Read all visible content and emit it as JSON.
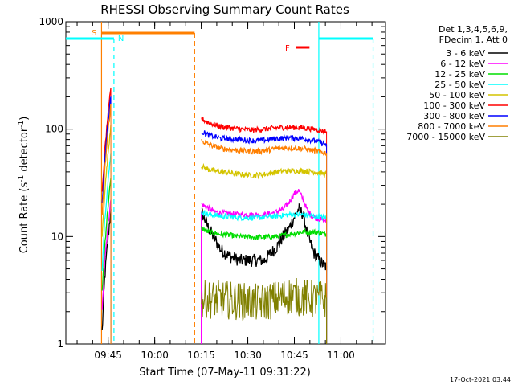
{
  "chart_data": {
    "type": "line",
    "title": "RHESSI Observing Summary Count Rates",
    "xlabel": "Start Time (07-May-11 09:31:22)",
    "ylabel": "Count Rate (s",
    "ylabel_sup1": "-1",
    "ylabel_mid": " detector",
    "ylabel_sup2": "-1",
    "ylabel_end": ")",
    "yscale": "log",
    "ylim": [
      1,
      1000
    ],
    "y_ticks": [
      {
        "value": 1,
        "label": "1"
      },
      {
        "value": 10,
        "label": "10"
      },
      {
        "value": 100,
        "label": "100"
      },
      {
        "value": 1000,
        "label": "1000"
      }
    ],
    "xlim_minutes": [
      0,
      103
    ],
    "x_ticks": [
      {
        "minutes": 13.63,
        "label": "09:45"
      },
      {
        "minutes": 28.63,
        "label": "10:00"
      },
      {
        "minutes": 43.63,
        "label": "10:15"
      },
      {
        "minutes": 58.63,
        "label": "10:30"
      },
      {
        "minutes": 73.63,
        "label": "10:45"
      },
      {
        "minutes": 88.63,
        "label": "11:00"
      }
    ],
    "legend": {
      "placement": "top-right outside",
      "header1": "Det 1,3,4,5,6,9,",
      "header2": "FDecim 1, Att 0",
      "entries": [
        {
          "label": "3 - 6 keV",
          "color": "#000000"
        },
        {
          "label": "6 - 12 keV",
          "color": "#ff00ff"
        },
        {
          "label": "12 - 25 keV",
          "color": "#00dd00"
        },
        {
          "label": "25 - 50 keV",
          "color": "#00ffff"
        },
        {
          "label": "50 - 100 keV",
          "color": "#d4c400"
        },
        {
          "label": "100 - 300 keV",
          "color": "#ff0000"
        },
        {
          "label": "300 - 800 keV",
          "color": "#0000ff"
        },
        {
          "label": "800 - 7000 keV",
          "color": "#ff7f00"
        },
        {
          "label": "7000 - 15000 keV",
          "color": "#808000"
        }
      ]
    },
    "annotations": {
      "saa_label": "S",
      "night_label": "N",
      "flare_label": "F",
      "saa_color": "#ff7f00",
      "night_color": "#00ffff",
      "flare_color": "#ff0000",
      "saa_interval_minutes": [
        11.5,
        41.5
      ],
      "night_intervals_minutes": [
        [
          0,
          15.5
        ],
        [
          81.5,
          99
        ]
      ],
      "flare_interval_minutes": [
        74.2,
        78.5
      ],
      "attenuator_line_minutes": 43.63
    },
    "series": [
      {
        "name": "3 - 6 keV",
        "color": "#000000",
        "segments": [
          {
            "x": [
              11.7,
              12.5,
              13.5,
              14.5
            ],
            "y": [
              1.3,
              4,
              9,
              18
            ]
          },
          {
            "x": [
              43.7,
              46,
              48,
              50,
              53,
              56,
              60,
              64,
              66,
              68,
              70,
              72,
              73.5,
              75,
              76.5,
              78,
              80,
              82,
              84
            ],
            "y": [
              17,
              12,
              9.5,
              7.5,
              6.5,
              6,
              6,
              6,
              7,
              8,
              10,
              12,
              15,
              18,
              16,
              10,
              7,
              5.8,
              5.2
            ]
          }
        ]
      },
      {
        "name": "6 - 12 keV",
        "color": "#ff00ff",
        "segments": [
          {
            "x": [
              11.7,
              12.5,
              13.5,
              14.5
            ],
            "y": [
              2,
              6,
              12,
              22
            ]
          },
          {
            "x": [
              43.7,
              48,
              56,
              64,
              68,
              70,
              72,
              73.5,
              75,
              76.5,
              78,
              80,
              84
            ],
            "y": [
              20,
              17,
              16,
              16,
              17,
              18,
              21,
              25,
              27,
              22,
              17,
              15,
              14
            ]
          }
        ]
      },
      {
        "name": "12 - 25 keV",
        "color": "#00dd00",
        "segments": [
          {
            "x": [
              11.7,
              12.5,
              13.5,
              14.5
            ],
            "y": [
              3,
              8,
              18,
              35
            ]
          },
          {
            "x": [
              43.7,
              46,
              50,
              56,
              62,
              68,
              72,
              76,
              80,
              84
            ],
            "y": [
              12,
              11,
              10.5,
              10,
              9.8,
              10,
              10.5,
              11,
              11,
              10.5
            ]
          }
        ]
      },
      {
        "name": "25 - 50 keV",
        "color": "#00ffff",
        "segments": [
          {
            "x": [
              11.7,
              12.5,
              13.5,
              14.5
            ],
            "y": [
              5,
              14,
              30,
              60
            ]
          },
          {
            "x": [
              43.7,
              46,
              50,
              56,
              62,
              68,
              72,
              76,
              80,
              84
            ],
            "y": [
              17,
              16,
              15.5,
              15,
              15,
              15.5,
              16,
              16,
              15.5,
              15
            ]
          }
        ]
      },
      {
        "name": "50 - 100 keV",
        "color": "#d4c400",
        "segments": [
          {
            "x": [
              11.7,
              12.5,
              13.5,
              14.5
            ],
            "y": [
              10,
              25,
              55,
              110
            ]
          },
          {
            "x": [
              43.7,
              46,
              50,
              56,
              60,
              64,
              68,
              72,
              76,
              80,
              84
            ],
            "y": [
              45,
              42,
              40,
              38,
              37,
              38,
              40,
              41,
              41,
              40,
              38
            ]
          }
        ]
      },
      {
        "name": "100 - 300 keV",
        "color": "#ff0000",
        "segments": [
          {
            "x": [
              11.7,
              12.5,
              13.5,
              14.5
            ],
            "y": [
              25,
              60,
              130,
              240
            ]
          },
          {
            "x": [
              43.7,
              46,
              50,
              56,
              60,
              64,
              68,
              72,
              76,
              80,
              84
            ],
            "y": [
              125,
              115,
              105,
              100,
              98,
              100,
              103,
              104,
              103,
              100,
              95
            ]
          }
        ]
      },
      {
        "name": "300 - 800 keV",
        "color": "#0000ff",
        "segments": [
          {
            "x": [
              11.7,
              12.5,
              13.5,
              14.5
            ],
            "y": [
              20,
              50,
              110,
              200
            ]
          },
          {
            "x": [
              43.7,
              46,
              50,
              56,
              60,
              64,
              68,
              72,
              76,
              80,
              84
            ],
            "y": [
              95,
              88,
              82,
              80,
              78,
              79,
              82,
              83,
              82,
              78,
              72
            ]
          }
        ]
      },
      {
        "name": "800 - 7000 keV",
        "color": "#ff7f00",
        "segments": [
          {
            "x": [
              11.7,
              12.5,
              13.5,
              14.5
            ],
            "y": [
              15,
              40,
              90,
              170
            ]
          },
          {
            "x": [
              43.7,
              46,
              50,
              56,
              60,
              64,
              68,
              72,
              76,
              80,
              84
            ],
            "y": [
              78,
              72,
              66,
              63,
              62,
              63,
              66,
              67,
              66,
              63,
              60
            ]
          }
        ]
      },
      {
        "name": "7000 - 15000 keV",
        "color": "#808000",
        "segments": [
          {
            "x": [
              43.7,
              50,
              56,
              62,
              68,
              72,
              76,
              80,
              84
            ],
            "y": [
              2.6,
              2.6,
              2.5,
              2.4,
              2.6,
              2.8,
              2.7,
              2.6,
              2.6
            ]
          }
        ]
      }
    ],
    "footer_timestamp": "17-Oct-2021 03:44"
  }
}
